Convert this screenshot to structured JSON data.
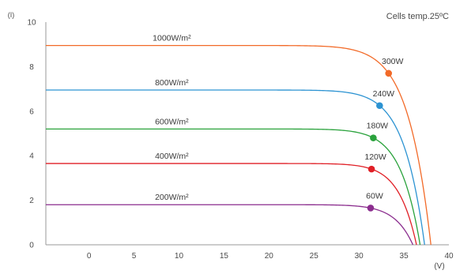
{
  "chart_data": {
    "type": "line",
    "note": "Cells temp.25ºC",
    "xlabel": "(V)",
    "ylabel": "(I)",
    "xlim": [
      -4.8,
      40
    ],
    "ylim": [
      0,
      10
    ],
    "xticks": [
      "0",
      "5",
      "10",
      "15",
      "20",
      "25",
      "30",
      "35",
      "40"
    ],
    "xtick_values": [
      0,
      5,
      10,
      15,
      20,
      25,
      30,
      35,
      40
    ],
    "yticks": [
      "0",
      "2",
      "4",
      "6",
      "8",
      "10"
    ],
    "ytick_values": [
      0,
      2,
      4,
      6,
      8,
      10
    ],
    "grid": false,
    "series": [
      {
        "name": "1000W/m²",
        "color": "#f26a28",
        "isc": 8.95,
        "voc": 38.0,
        "mpp_v": 33.3,
        "mpp_i": 7.7,
        "mpp_label": "300W"
      },
      {
        "name": "800W/m²",
        "color": "#2c93d2",
        "isc": 6.95,
        "voc": 37.3,
        "mpp_v": 32.3,
        "mpp_i": 6.25,
        "mpp_label": "240W"
      },
      {
        "name": "600W/m²",
        "color": "#2aa23c",
        "isc": 5.2,
        "voc": 36.8,
        "mpp_v": 31.6,
        "mpp_i": 4.8,
        "mpp_label": "180W"
      },
      {
        "name": "400W/m²",
        "color": "#e01f26",
        "isc": 3.65,
        "voc": 36.4,
        "mpp_v": 31.4,
        "mpp_i": 3.4,
        "mpp_label": "120W"
      },
      {
        "name": "200W/m²",
        "color": "#8b2d8e",
        "isc": 1.8,
        "voc": 36.0,
        "mpp_v": 31.3,
        "mpp_i": 1.65,
        "mpp_label": "60W"
      }
    ]
  }
}
